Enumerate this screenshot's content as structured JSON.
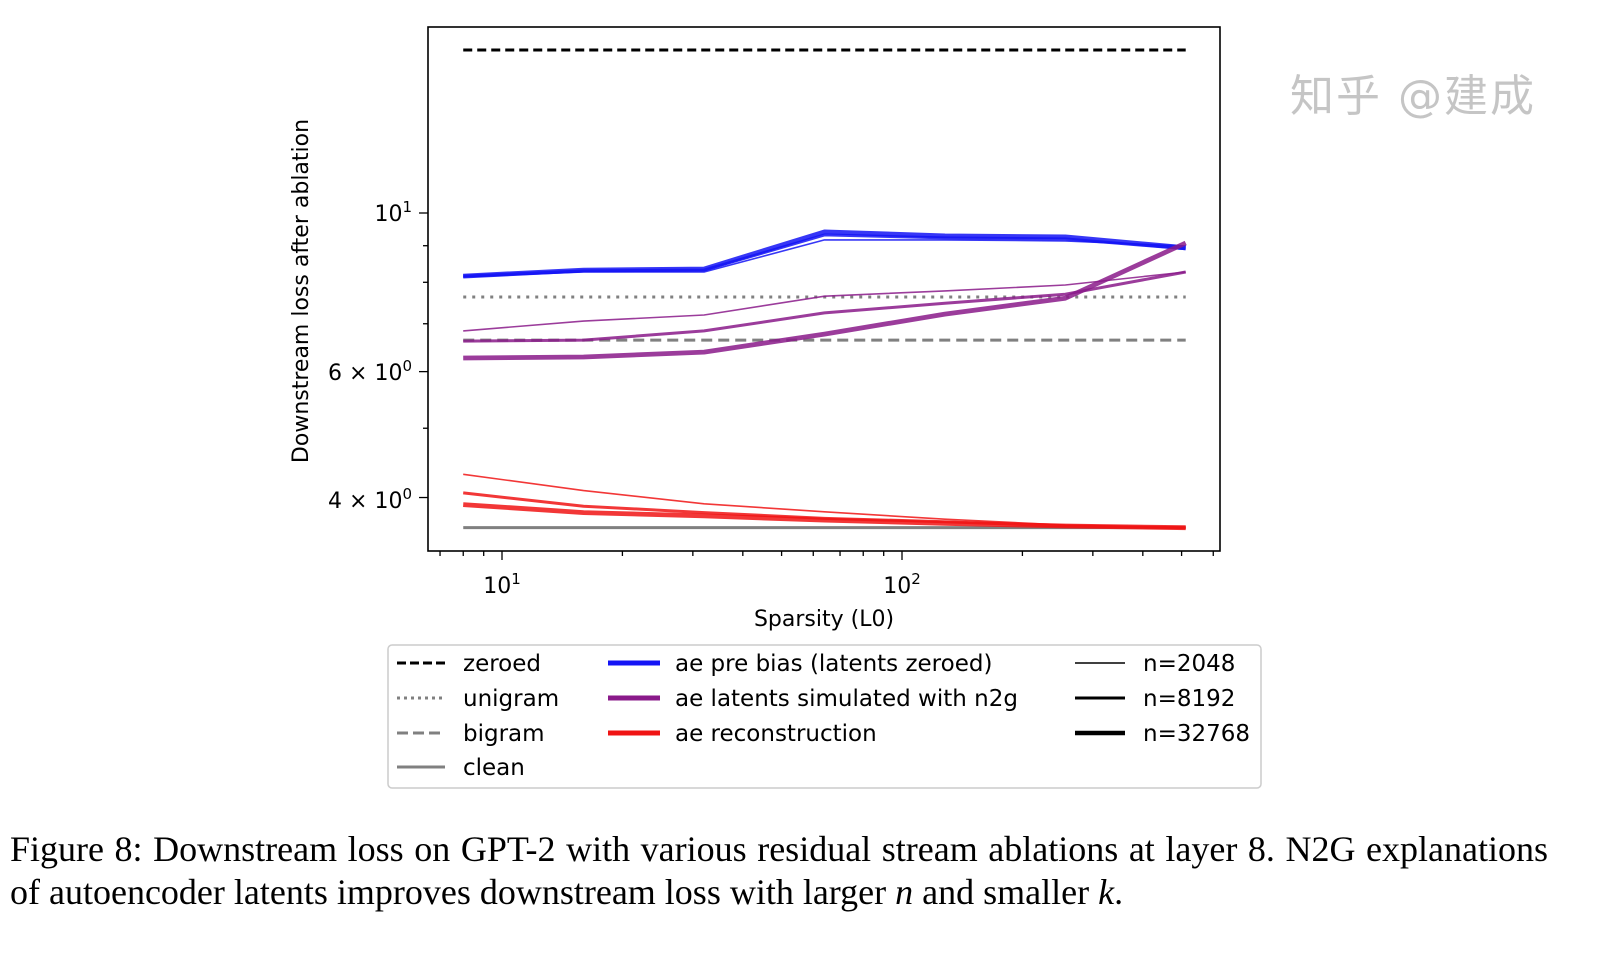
{
  "chart_data": {
    "type": "line",
    "xlabel": "Sparsity (L0)",
    "ylabel": "Downstream loss after ablation",
    "xscale": "log",
    "yscale": "log",
    "xlim": [
      6.5,
      623
    ],
    "ylim": [
      3.37,
      18.2
    ],
    "x_ticks": [
      {
        "base": "10",
        "exp": "1",
        "value": 10
      },
      {
        "base": "10",
        "exp": "2",
        "value": 100
      }
    ],
    "y_ticks": [
      {
        "base": "10",
        "exp": "1",
        "value": 10
      },
      {
        "base": "6 × 10",
        "exp": "0",
        "value": 6
      },
      {
        "base": "4 × 10",
        "exp": "0",
        "value": 4
      }
    ],
    "grid": false,
    "legend_placement": "below",
    "x": [
      8,
      16,
      32,
      64,
      128,
      256,
      512
    ],
    "baselines": [
      {
        "name": "zeroed",
        "value": 16.9,
        "color": "#000000",
        "style": "dashed"
      },
      {
        "name": "unigram",
        "value": 7.63,
        "color": "#808080",
        "style": "dotted"
      },
      {
        "name": "bigram",
        "value": 6.64,
        "color": "#808080",
        "style": "dashed"
      },
      {
        "name": "clean",
        "value": 3.63,
        "color": "#808080",
        "style": "solid"
      }
    ],
    "series": [
      {
        "name": "ae pre bias (latents zeroed)",
        "color": "#1414f5",
        "n": "n=2048",
        "values": [
          8.14,
          8.27,
          8.27,
          9.17,
          9.17,
          9.14,
          8.99
        ]
      },
      {
        "name": "ae pre bias (latents zeroed)",
        "color": "#1414f5",
        "n": "n=8192",
        "values": [
          8.16,
          8.3,
          8.32,
          9.32,
          9.23,
          9.2,
          8.91
        ]
      },
      {
        "name": "ae pre bias (latents zeroed)",
        "color": "#1414f5",
        "n": "n=32768",
        "values": [
          8.16,
          8.32,
          8.35,
          9.41,
          9.29,
          9.26,
          8.94
        ]
      },
      {
        "name": "ae latents simulated with n2g",
        "color": "#8a1a8a",
        "n": "n=2048",
        "values": [
          6.84,
          7.06,
          7.2,
          7.65,
          7.78,
          7.93,
          8.27
        ]
      },
      {
        "name": "ae latents simulated with n2g",
        "color": "#8a1a8a",
        "n": "n=8192",
        "values": [
          6.62,
          6.64,
          6.84,
          7.25,
          7.48,
          7.7,
          8.27
        ]
      },
      {
        "name": "ae latents simulated with n2g",
        "color": "#8a1a8a",
        "n": "n=32768",
        "values": [
          6.27,
          6.29,
          6.39,
          6.77,
          7.22,
          7.6,
          9.08
        ]
      },
      {
        "name": "ae reconstruction",
        "color": "#f01414",
        "n": "n=2048",
        "values": [
          4.31,
          4.09,
          3.92,
          3.82,
          3.73,
          3.66,
          3.63
        ]
      },
      {
        "name": "ae reconstruction",
        "color": "#f01414",
        "n": "n=8192",
        "values": [
          4.06,
          3.89,
          3.81,
          3.74,
          3.7,
          3.65,
          3.63
        ]
      },
      {
        "name": "ae reconstruction",
        "color": "#f01414",
        "n": "n=32768",
        "values": [
          3.91,
          3.81,
          3.77,
          3.72,
          3.68,
          3.65,
          3.63
        ]
      }
    ],
    "legend": {
      "col1": [
        "zeroed",
        "unigram",
        "bigram",
        "clean"
      ],
      "col2": [
        "ae pre bias (latents zeroed)",
        "ae latents simulated with n2g",
        "ae reconstruction"
      ],
      "col3": [
        "n=2048",
        "n=8192",
        "n=32768"
      ]
    }
  },
  "caption": {
    "part1": "Figure 8:  Downstream loss on GPT-2 with various residual stream ablations at layer 8.  N2G explanations of autoencoder latents improves downstream loss with larger ",
    "n": "n",
    "part2": " and smaller ",
    "k": "k",
    "part3": "."
  },
  "watermark": "知乎 @建成"
}
